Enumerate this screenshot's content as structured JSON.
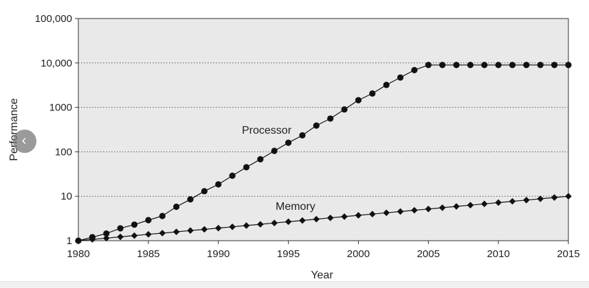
{
  "navigation": {
    "prev_icon": "chevron-left-icon",
    "prev_glyph": "‹"
  },
  "chart_data": {
    "type": "line",
    "title": "",
    "xlabel": "Year",
    "ylabel": "Performance",
    "y_scale": "log",
    "xlim": [
      1980,
      2015
    ],
    "ylim": [
      1,
      100000
    ],
    "x_ticks": [
      1980,
      1985,
      1990,
      1995,
      2000,
      2005,
      2010,
      2015
    ],
    "x_tick_labels": [
      "1980",
      "1985",
      "1990",
      "1995",
      "2000",
      "2005",
      "2010",
      "2015"
    ],
    "y_ticks": [
      1,
      10,
      100,
      1000,
      10000,
      100000
    ],
    "y_tick_labels": [
      "1",
      "10",
      "100",
      "1000",
      "10,000",
      "100,000"
    ],
    "grid": "horizontal dotted",
    "plot_background": "#e9e9e9",
    "series": [
      {
        "name": "Processor",
        "marker": "circle",
        "color": "#111111",
        "x": [
          1980,
          1981,
          1982,
          1983,
          1984,
          1985,
          1986,
          1987,
          1988,
          1989,
          1990,
          1991,
          1992,
          1993,
          1994,
          1995,
          1996,
          1997,
          1998,
          1999,
          2000,
          2001,
          2002,
          2003,
          2004,
          2005,
          2006,
          2007,
          2008,
          2009,
          2010,
          2011,
          2012,
          2013,
          2014,
          2015
        ],
        "values": [
          1,
          1.2,
          1.45,
          1.9,
          2.3,
          2.9,
          3.6,
          5.8,
          8.5,
          13,
          18.5,
          29,
          45,
          68,
          105,
          160,
          235,
          390,
          560,
          900,
          1450,
          2050,
          3200,
          4700,
          6900,
          9000,
          9000,
          9000,
          9000,
          9000,
          9000,
          9000,
          9000,
          9000,
          9000,
          9000
        ]
      },
      {
        "name": "Memory",
        "marker": "diamond",
        "color": "#111111",
        "x": [
          1980,
          1981,
          1982,
          1983,
          1984,
          1985,
          1986,
          1987,
          1988,
          1989,
          1990,
          1991,
          1992,
          1993,
          1994,
          1995,
          1996,
          1997,
          1998,
          1999,
          2000,
          2001,
          2002,
          2003,
          2004,
          2005,
          2006,
          2007,
          2008,
          2009,
          2010,
          2011,
          2012,
          2013,
          2014,
          2015
        ],
        "values": [
          1,
          1.07,
          1.14,
          1.22,
          1.3,
          1.39,
          1.48,
          1.58,
          1.69,
          1.8,
          1.92,
          2.05,
          2.19,
          2.34,
          2.5,
          2.67,
          2.85,
          3.05,
          3.26,
          3.48,
          3.72,
          3.97,
          4.24,
          4.53,
          4.84,
          5.17,
          5.52,
          5.9,
          6.3,
          6.73,
          7.19,
          7.68,
          8.2,
          8.76,
          9.36,
          10
        ]
      }
    ]
  }
}
